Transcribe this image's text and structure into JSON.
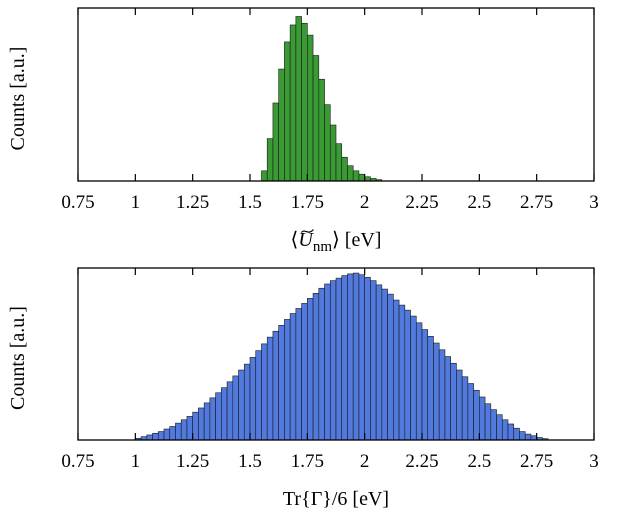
{
  "chart_data": [
    {
      "type": "bar",
      "name": "top-histogram",
      "xlabel": "⟨Ũnm⟩ [eV]",
      "xlabel_parts": {
        "open": "⟨",
        "symbol": "U",
        "sub": "nm",
        "close": "⟩",
        "unit": " [eV]"
      },
      "ylabel": "Counts [a.u.]",
      "xlim": [
        0.75,
        3
      ],
      "ylim": [
        0,
        1.02
      ],
      "xticks": [
        0.75,
        1,
        1.25,
        1.5,
        1.75,
        2,
        2.25,
        2.5,
        2.75,
        3
      ],
      "xtick_labels": [
        "0.75",
        "1",
        "1.25",
        "1.5",
        "1.75",
        "2",
        "2.25",
        "2.5",
        "2.75",
        "3"
      ],
      "color": "#3a9a34",
      "bin_width": 0.025,
      "x": [
        1.55,
        1.575,
        1.6,
        1.625,
        1.65,
        1.675,
        1.7,
        1.725,
        1.75,
        1.775,
        1.8,
        1.825,
        1.85,
        1.875,
        1.9,
        1.925,
        1.95,
        1.975,
        2.0,
        2.025,
        2.05
      ],
      "values": [
        0.06,
        0.25,
        0.46,
        0.66,
        0.82,
        0.92,
        0.97,
        0.93,
        0.86,
        0.74,
        0.6,
        0.45,
        0.33,
        0.22,
        0.14,
        0.09,
        0.06,
        0.04,
        0.025,
        0.015,
        0.008
      ]
    },
    {
      "type": "bar",
      "name": "bottom-histogram",
      "xlabel": "Tr{Γ}/6 [eV]",
      "ylabel": "Counts [a.u.]",
      "xlim": [
        0.75,
        3
      ],
      "ylim": [
        0,
        1.02
      ],
      "xticks": [
        0.75,
        1,
        1.25,
        1.5,
        1.75,
        2,
        2.25,
        2.5,
        2.75,
        3
      ],
      "xtick_labels": [
        "0.75",
        "1",
        "1.25",
        "1.5",
        "1.75",
        "2",
        "2.25",
        "2.5",
        "2.75",
        "3"
      ],
      "color": "#5279de",
      "bin_width": 0.025,
      "x": [
        1.0,
        1.025,
        1.05,
        1.075,
        1.1,
        1.125,
        1.15,
        1.175,
        1.2,
        1.225,
        1.25,
        1.275,
        1.3,
        1.325,
        1.35,
        1.375,
        1.4,
        1.425,
        1.45,
        1.475,
        1.5,
        1.525,
        1.55,
        1.575,
        1.6,
        1.625,
        1.65,
        1.675,
        1.7,
        1.725,
        1.75,
        1.775,
        1.8,
        1.825,
        1.85,
        1.875,
        1.9,
        1.925,
        1.95,
        1.975,
        2.0,
        2.025,
        2.05,
        2.075,
        2.1,
        2.125,
        2.15,
        2.175,
        2.2,
        2.225,
        2.25,
        2.275,
        2.3,
        2.325,
        2.35,
        2.375,
        2.4,
        2.425,
        2.45,
        2.475,
        2.5,
        2.525,
        2.55,
        2.575,
        2.6,
        2.625,
        2.65,
        2.675,
        2.7,
        2.725,
        2.75,
        2.775
      ],
      "values": [
        0.01,
        0.02,
        0.03,
        0.04,
        0.05,
        0.065,
        0.08,
        0.1,
        0.12,
        0.14,
        0.165,
        0.19,
        0.22,
        0.25,
        0.28,
        0.31,
        0.345,
        0.38,
        0.415,
        0.45,
        0.49,
        0.53,
        0.57,
        0.61,
        0.645,
        0.68,
        0.715,
        0.75,
        0.78,
        0.81,
        0.84,
        0.87,
        0.9,
        0.925,
        0.945,
        0.96,
        0.975,
        0.985,
        0.99,
        0.98,
        0.965,
        0.945,
        0.92,
        0.895,
        0.865,
        0.83,
        0.8,
        0.77,
        0.735,
        0.695,
        0.655,
        0.615,
        0.575,
        0.535,
        0.495,
        0.455,
        0.415,
        0.375,
        0.335,
        0.295,
        0.255,
        0.215,
        0.18,
        0.15,
        0.12,
        0.095,
        0.07,
        0.05,
        0.035,
        0.025,
        0.015,
        0.008
      ]
    }
  ]
}
